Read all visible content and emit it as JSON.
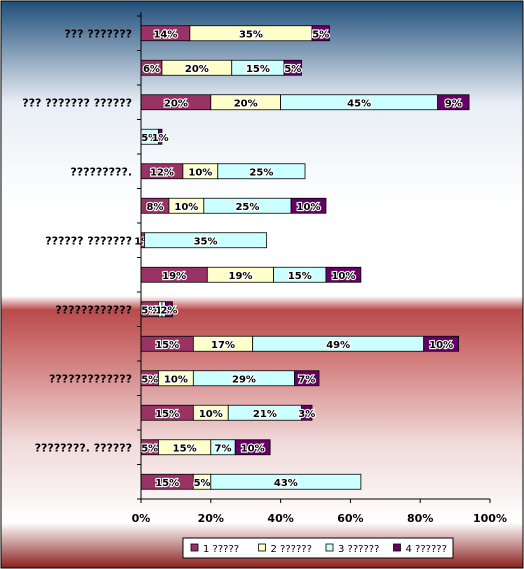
{
  "chart_data": {
    "type": "bar",
    "orientation": "horizontal",
    "stacked": true,
    "xlim": [
      0,
      100
    ],
    "x_ticks": [
      "0%",
      "20%",
      "40%",
      "60%",
      "80%",
      "100%"
    ],
    "grid": false,
    "legend_position": "bottom",
    "category_labels": [
      "??? ???????",
      "??? ??????? ??????",
      "?????????.",
      "?????? ???????",
      "????????????",
      "?????????????",
      "????????. ??????"
    ],
    "rows": [
      {
        "category": "??? ???????",
        "values": [
          14,
          35,
          0,
          5
        ],
        "labels": [
          "14%",
          "35%",
          "",
          "5%"
        ]
      },
      {
        "category": "",
        "values": [
          6,
          20,
          15,
          5
        ],
        "labels": [
          "6%",
          "20%",
          "15%",
          "5%"
        ]
      },
      {
        "category": "??? ??????? ??????",
        "values": [
          20,
          20,
          45,
          9
        ],
        "labels": [
          "20%",
          "20%",
          "45%",
          "9%"
        ]
      },
      {
        "category": "",
        "values": [
          0,
          0,
          5,
          1
        ],
        "labels": [
          "",
          "",
          "5%",
          "1%"
        ]
      },
      {
        "category": "?????????.",
        "values": [
          12,
          10,
          25,
          0
        ],
        "labels": [
          "12%",
          "10%",
          "25%",
          ""
        ]
      },
      {
        "category": "",
        "values": [
          8,
          10,
          25,
          10
        ],
        "labels": [
          "8%",
          "10%",
          "25%",
          "10%"
        ]
      },
      {
        "category": "?????? ???????",
        "values": [
          1,
          0,
          35,
          0
        ],
        "labels": [
          "1%",
          "",
          "35%",
          ""
        ]
      },
      {
        "category": "",
        "values": [
          19,
          19,
          15,
          10
        ],
        "labels": [
          "19%",
          "19%",
          "15%",
          "10%"
        ]
      },
      {
        "category": "????????????",
        "values": [
          5,
          1,
          1,
          2
        ],
        "labels": [
          "5%",
          "1%",
          "1%",
          "2%"
        ]
      },
      {
        "category": "",
        "values": [
          15,
          17,
          49,
          10
        ],
        "labels": [
          "15%",
          "17%",
          "49%",
          "10%"
        ]
      },
      {
        "category": "?????????????",
        "values": [
          5,
          10,
          29,
          7
        ],
        "labels": [
          "5%",
          "10%",
          "29%",
          "7%"
        ]
      },
      {
        "category": "",
        "values": [
          15,
          10,
          21,
          3
        ],
        "labels": [
          "15%",
          "10%",
          "21%",
          "3%"
        ]
      },
      {
        "category": "????????. ??????",
        "values": [
          5,
          15,
          7,
          10
        ],
        "labels": [
          "5%",
          "15%",
          "7%",
          "10%"
        ]
      },
      {
        "category": "",
        "values": [
          15,
          5,
          43,
          0
        ],
        "labels": [
          "15%",
          "5%",
          "43%",
          ""
        ]
      }
    ],
    "series": [
      {
        "name": "1 ?????",
        "color": "#993366"
      },
      {
        "name": "2 ??????",
        "color": "#FFFFCC"
      },
      {
        "name": "3 ??????",
        "color": "#CCFFFF"
      },
      {
        "name": "4 ??????",
        "color": "#660066"
      }
    ]
  }
}
